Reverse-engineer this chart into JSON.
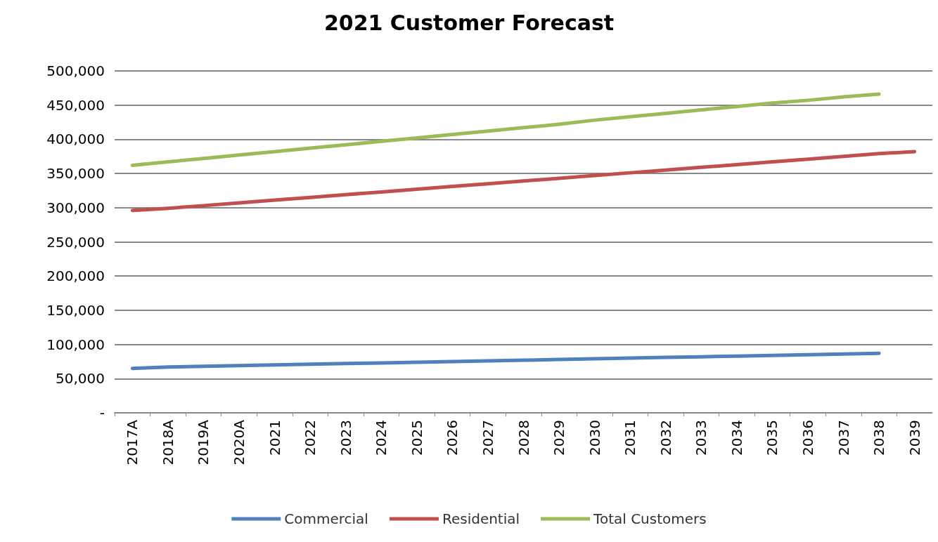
{
  "chart_data": {
    "type": "line",
    "title": "2021 Customer Forecast",
    "categories": [
      "2017A",
      "2018A",
      "2019A",
      "2020A",
      "2021",
      "2022",
      "2023",
      "2024",
      "2025",
      "2026",
      "2027",
      "2028",
      "2029",
      "2030",
      "2031",
      "2032",
      "2033",
      "2034",
      "2035",
      "2036",
      "2037",
      "2038",
      "2039"
    ],
    "series": [
      {
        "name": "Commercial",
        "color": "#4f81bd",
        "values": [
          65000,
          67000,
          68000,
          69000,
          70000,
          71000,
          72000,
          73000,
          74000,
          75000,
          76000,
          77000,
          78000,
          79000,
          80000,
          81000,
          82000,
          83000,
          84000,
          85000,
          86000,
          87000,
          null
        ]
      },
      {
        "name": "Residential",
        "color": "#c0504d",
        "values": [
          296000,
          299000,
          303000,
          307000,
          311000,
          315000,
          319000,
          323000,
          327000,
          331000,
          335000,
          339000,
          343000,
          347000,
          351000,
          355000,
          359000,
          363000,
          367000,
          371000,
          375000,
          379000,
          382000
        ]
      },
      {
        "name": "Total Customers",
        "color": "#9bbb59",
        "values": [
          362000,
          367000,
          372000,
          377000,
          382000,
          387000,
          392000,
          397000,
          402000,
          407000,
          412000,
          417000,
          422000,
          428000,
          433000,
          438000,
          443000,
          448000,
          453000,
          457000,
          462000,
          466000,
          null
        ]
      }
    ],
    "ylim": [
      0,
      500000
    ],
    "yticks": [
      {
        "value": 0,
        "label": "-"
      },
      {
        "value": 50000,
        "label": "50,000"
      },
      {
        "value": 100000,
        "label": "100,000"
      },
      {
        "value": 150000,
        "label": "150,000"
      },
      {
        "value": 200000,
        "label": "200,000"
      },
      {
        "value": 250000,
        "label": "250,000"
      },
      {
        "value": 300000,
        "label": "300,000"
      },
      {
        "value": 350000,
        "label": "350,000"
      },
      {
        "value": 400000,
        "label": "400,000"
      },
      {
        "value": 450000,
        "label": "450,000"
      },
      {
        "value": 500000,
        "label": "500,000"
      }
    ],
    "grid": "y",
    "legend": "bottom",
    "marker": "none",
    "line_style": "solid"
  }
}
